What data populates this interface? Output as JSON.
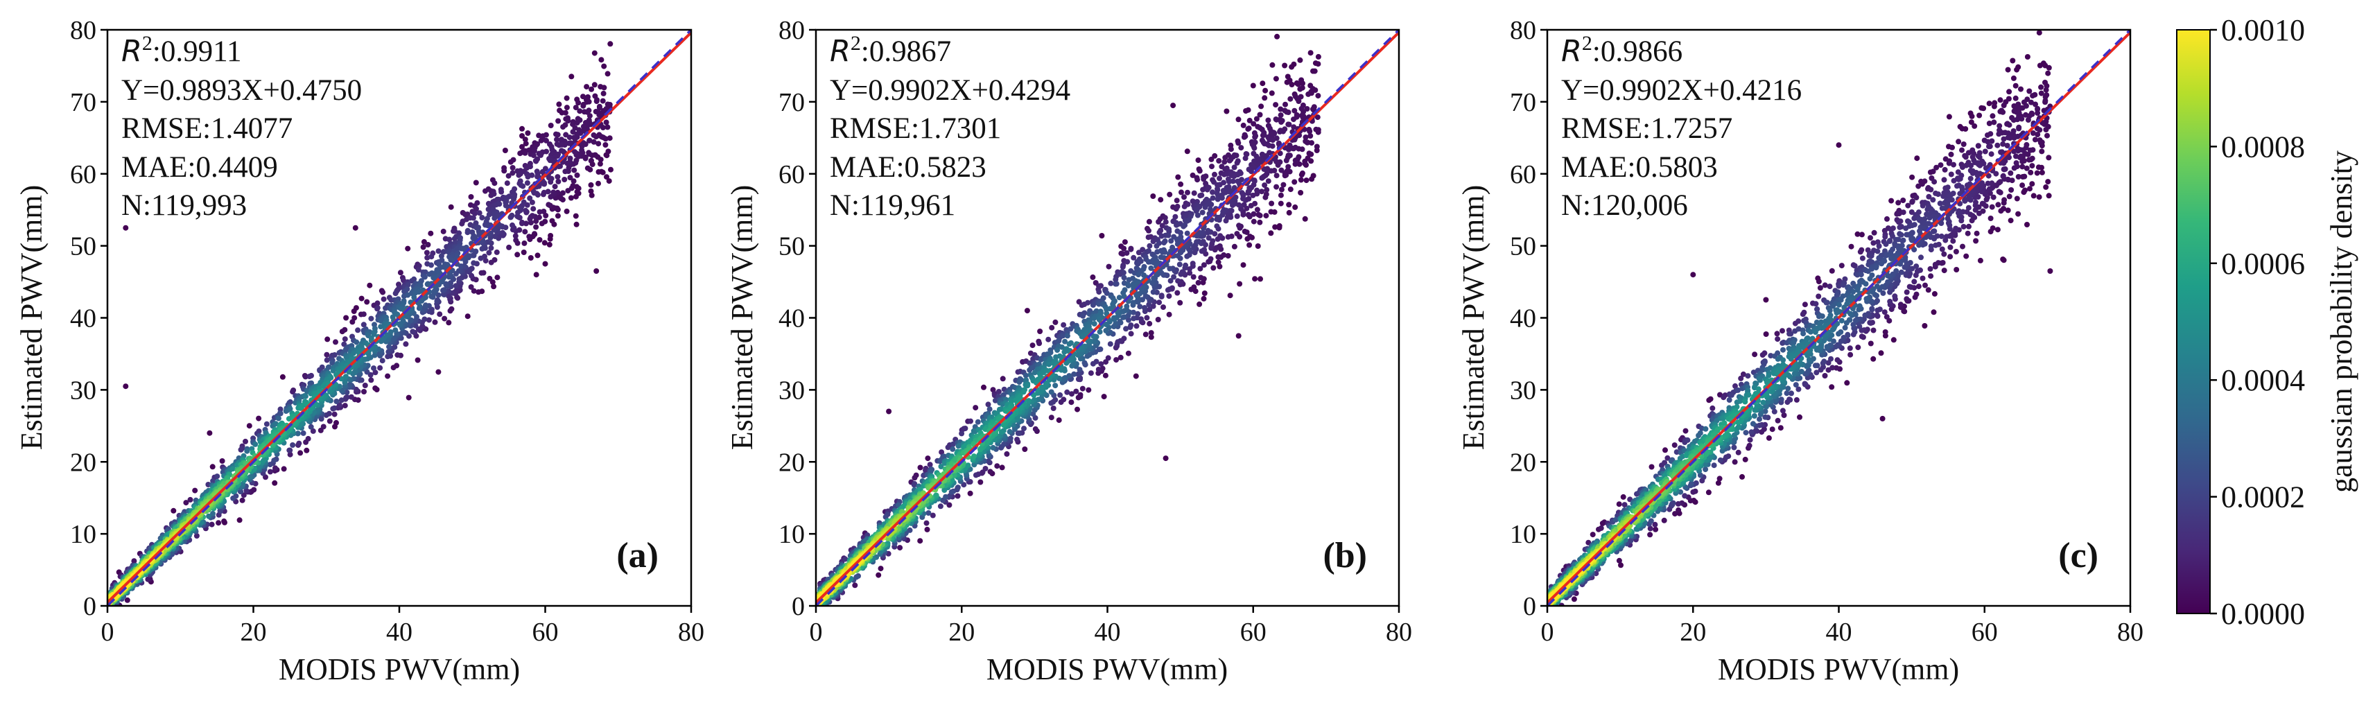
{
  "chart_data": [
    {
      "type": "scatter",
      "panel_label": "(a)",
      "xlabel": "MODIS PWV(mm)",
      "ylabel": "Estimated PWV(mm)",
      "xlim": [
        0,
        80
      ],
      "ylim": [
        0,
        80
      ],
      "xticks": [
        "0",
        "20",
        "40",
        "60",
        "80"
      ],
      "yticks": [
        "0",
        "10",
        "20",
        "30",
        "40",
        "50",
        "60",
        "70",
        "80"
      ],
      "stats": {
        "r2_symbol": "R",
        "r2_exp": "2",
        "r2_value": ":0.9911",
        "equation": "Y=0.9893X+0.4750",
        "rmse": "RMSE:1.4077",
        "mae": "MAE:0.4409",
        "n": "N:119,993"
      },
      "fit": {
        "slope": 0.9893,
        "intercept": 0.475
      },
      "data_range_max": 69,
      "spread": 0.85,
      "outliers": [
        [
          2.5,
          30.5
        ],
        [
          2.5,
          52.5
        ],
        [
          34,
          52.5
        ],
        [
          67,
          46.5
        ],
        [
          14,
          24
        ],
        [
          60,
          47.5
        ]
      ]
    },
    {
      "type": "scatter",
      "panel_label": "(b)",
      "xlabel": "MODIS PWV(mm)",
      "ylabel": "Estimated PWV(mm)",
      "xlim": [
        0,
        80
      ],
      "ylim": [
        0,
        80
      ],
      "xticks": [
        "0",
        "20",
        "40",
        "60",
        "80"
      ],
      "yticks": [
        "0",
        "10",
        "20",
        "30",
        "40",
        "50",
        "60",
        "70",
        "80"
      ],
      "stats": {
        "r2_symbol": "R",
        "r2_exp": "2",
        "r2_value": ":0.9867",
        "equation": "Y=0.9902X+0.4294",
        "rmse": "RMSE:1.7301",
        "mae": "MAE:0.5823",
        "n": "N:119,961"
      },
      "fit": {
        "slope": 0.9902,
        "intercept": 0.4294
      },
      "data_range_max": 69,
      "spread": 1.0,
      "outliers": [
        [
          49,
          69.5
        ],
        [
          48,
          20.5
        ],
        [
          58,
          37.5
        ],
        [
          10,
          27
        ],
        [
          29,
          41
        ]
      ]
    },
    {
      "type": "scatter",
      "panel_label": "(c)",
      "xlabel": "MODIS PWV(mm)",
      "ylabel": "Estimated PWV(mm)",
      "xlim": [
        0,
        80
      ],
      "ylim": [
        0,
        80
      ],
      "xticks": [
        "0",
        "20",
        "40",
        "60",
        "80"
      ],
      "yticks": [
        "0",
        "10",
        "20",
        "30",
        "40",
        "50",
        "60",
        "70",
        "80"
      ],
      "stats": {
        "r2_symbol": "R",
        "r2_exp": "2",
        "r2_value": ":0.9866",
        "equation": "Y=0.9902X+0.4216",
        "rmse": "RMSE:1.7257",
        "mae": "MAE:0.5803",
        "n": "N:120,006"
      },
      "fit": {
        "slope": 0.9902,
        "intercept": 0.4216
      },
      "data_range_max": 69,
      "spread": 1.0,
      "outliers": [
        [
          20,
          46
        ],
        [
          40,
          64
        ],
        [
          69,
          46.5
        ],
        [
          46,
          26
        ],
        [
          30,
          42.5
        ]
      ]
    }
  ],
  "colorbar": {
    "label": "gaussian probability density",
    "ticks": [
      "0.0010",
      "0.0008",
      "0.0006",
      "0.0004",
      "0.0002",
      "0.0000"
    ],
    "range": [
      0,
      0.001
    ],
    "colormap": [
      "#440154",
      "#482878",
      "#3e4989",
      "#31688e",
      "#26828e",
      "#1f9e89",
      "#35b779",
      "#6ece58",
      "#b5de2b",
      "#fde725"
    ]
  },
  "line_colors": {
    "fit": "#e8291f",
    "identity": "#3b30c9"
  }
}
